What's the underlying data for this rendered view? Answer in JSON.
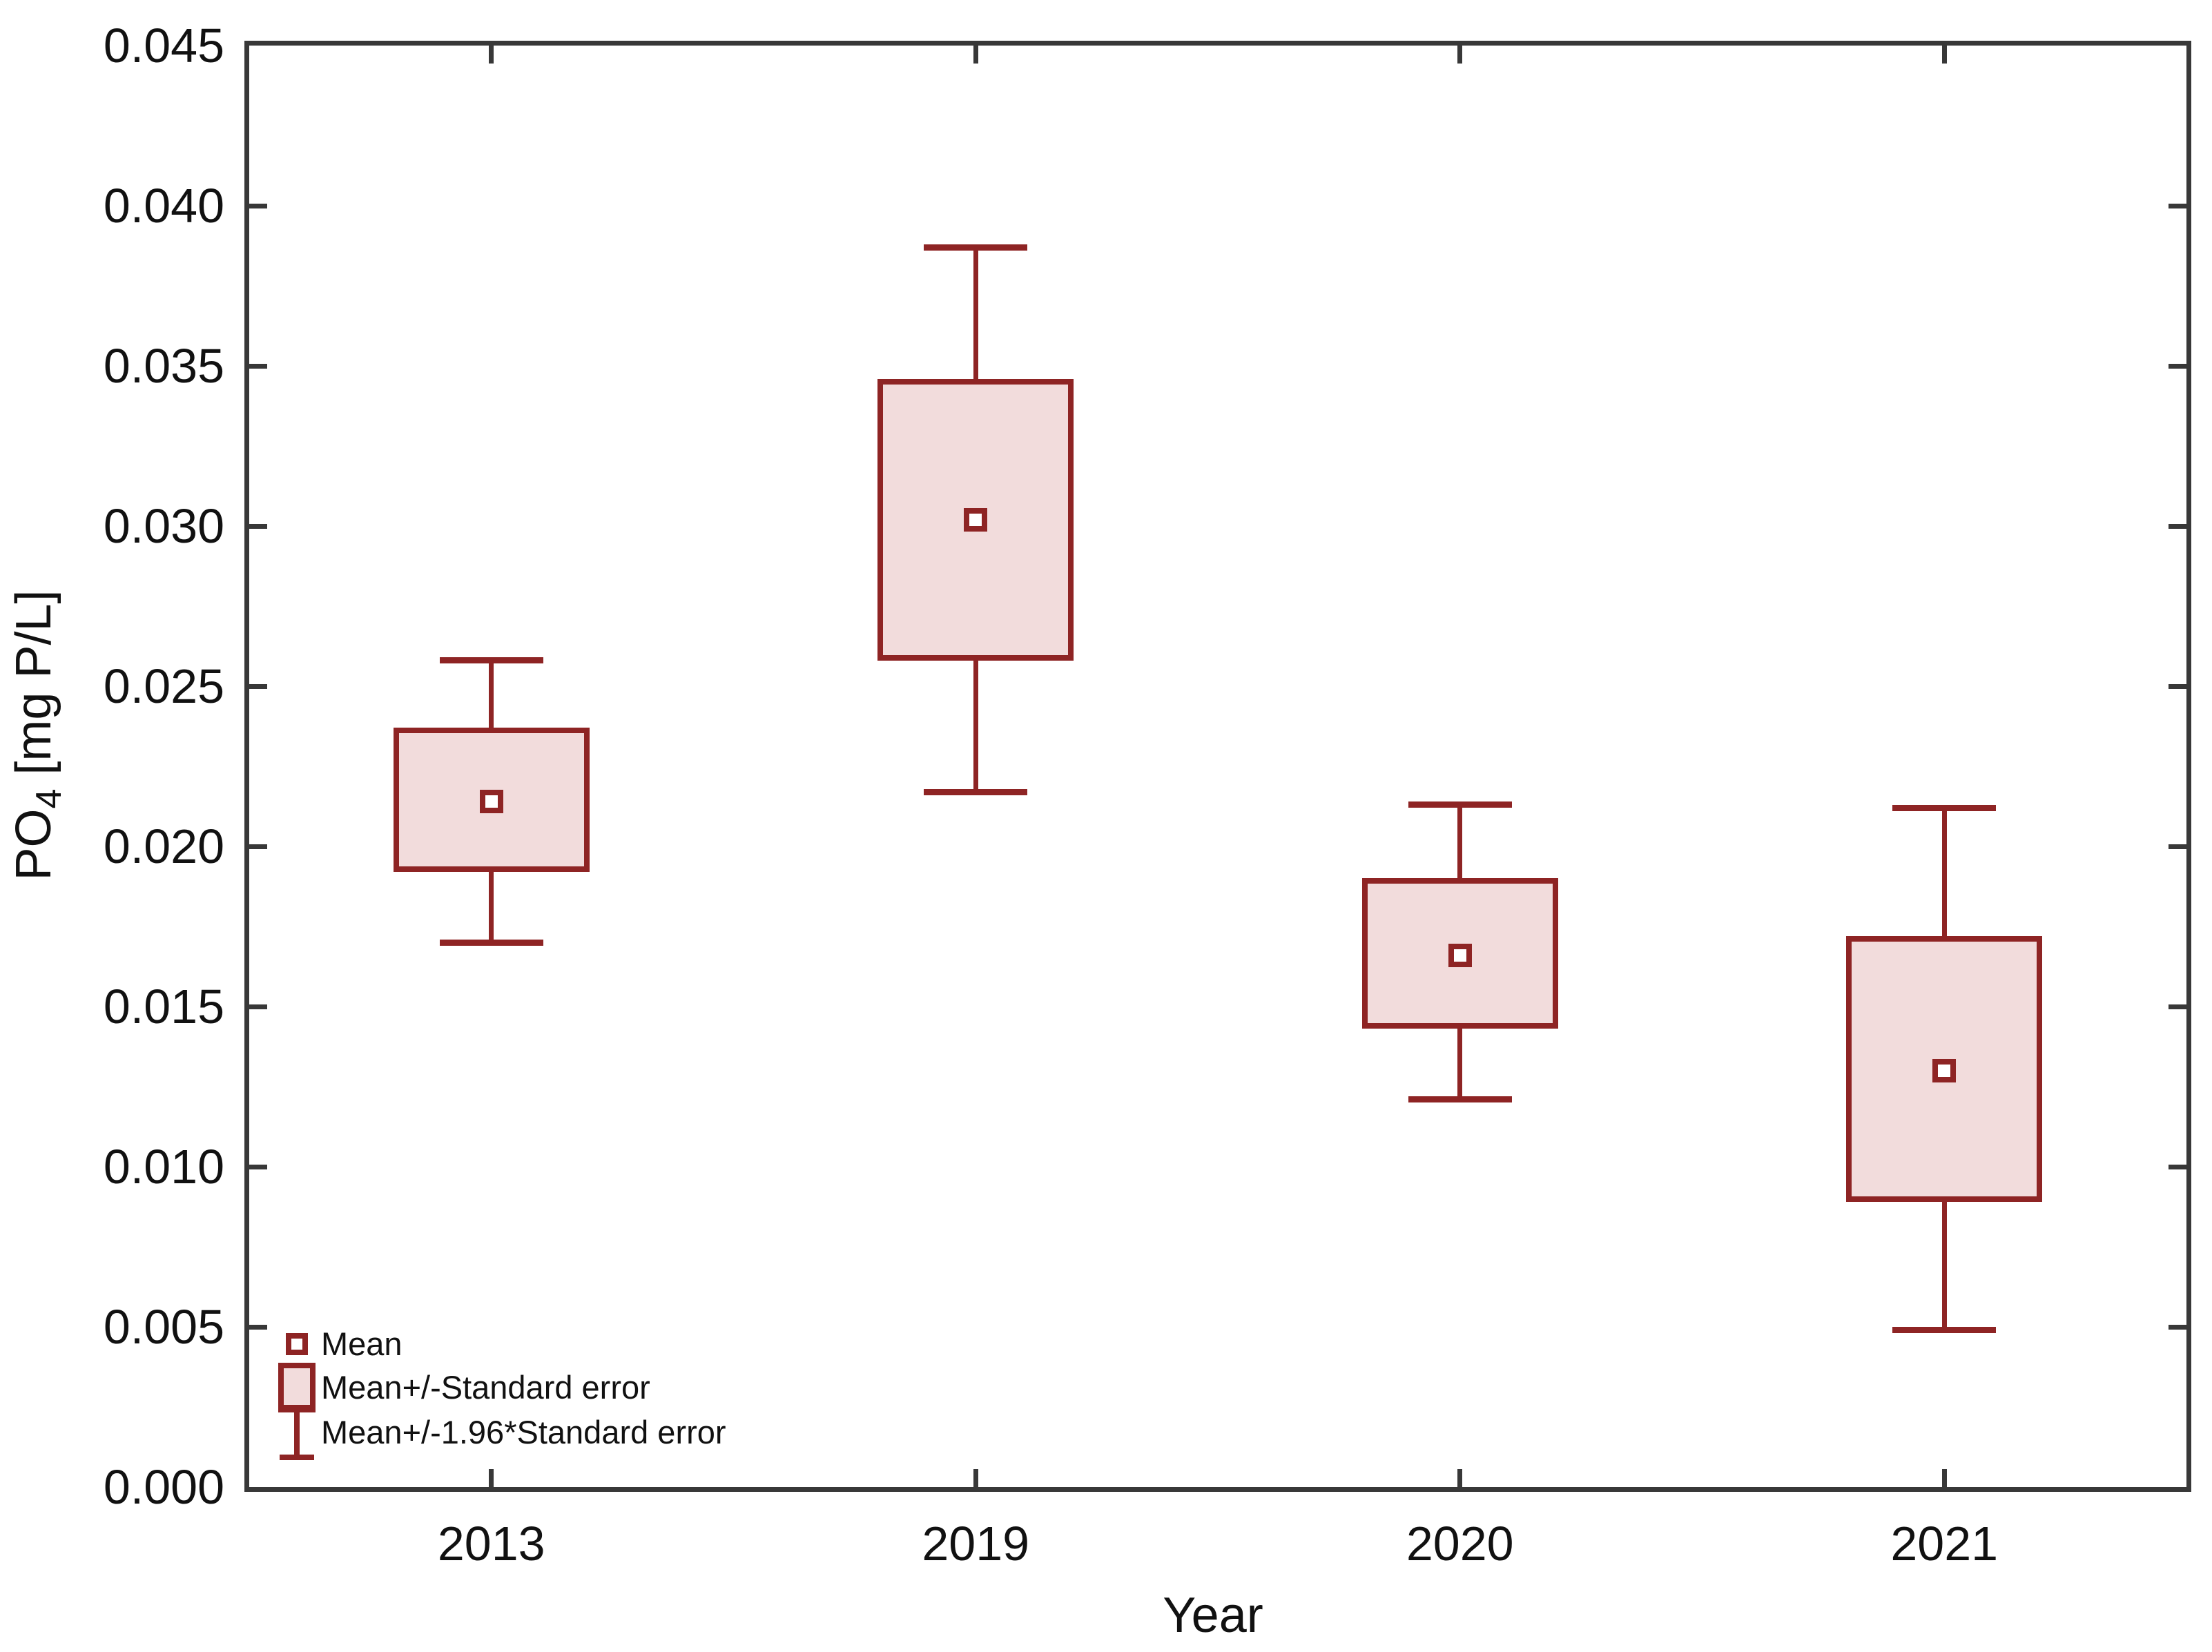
{
  "chart_data": {
    "type": "box",
    "variant": "mean-with-standard-error",
    "title": "",
    "xlabel": "Year",
    "ylabel": "PO4 [mg P/L]",
    "ylabel_parts": {
      "prefix": "PO",
      "subscript": "4",
      "suffix": " [mg P/L]"
    },
    "categories": [
      "2013",
      "2019",
      "2020",
      "2021"
    ],
    "series": [
      {
        "category": "2013",
        "mean": 0.0214,
        "box_low": 0.0192,
        "box_high": 0.0237,
        "whisker_low": 0.017,
        "whisker_high": 0.0258
      },
      {
        "category": "2019",
        "mean": 0.0302,
        "box_low": 0.0258,
        "box_high": 0.0346,
        "whisker_low": 0.0217,
        "whisker_high": 0.0387
      },
      {
        "category": "2020",
        "mean": 0.0166,
        "box_low": 0.0143,
        "box_high": 0.019,
        "whisker_low": 0.0121,
        "whisker_high": 0.0213
      },
      {
        "category": "2021",
        "mean": 0.013,
        "box_low": 0.0089,
        "box_high": 0.0172,
        "whisker_low": 0.0049,
        "whisker_high": 0.0212
      }
    ],
    "ylim": [
      0,
      0.045
    ],
    "ytick_step": 0.005,
    "ytick_labels": [
      "0.000",
      "0.005",
      "0.010",
      "0.015",
      "0.020",
      "0.025",
      "0.030",
      "0.035",
      "0.040",
      "0.045"
    ],
    "grid": false,
    "legend_position": "bottom-left-inside"
  },
  "legend": {
    "items": [
      {
        "label": "Mean",
        "marker": "square-outline"
      },
      {
        "label": "Mean+/-Standard error",
        "marker": "filled-box"
      },
      {
        "label": "Mean+/-1.96*Standard error",
        "marker": "error-bar"
      }
    ]
  },
  "colors": {
    "series_line": "#8e2424",
    "series_fill": "#f2dcdc",
    "frame": "#383838",
    "text": "#111111",
    "background": "#ffffff"
  }
}
